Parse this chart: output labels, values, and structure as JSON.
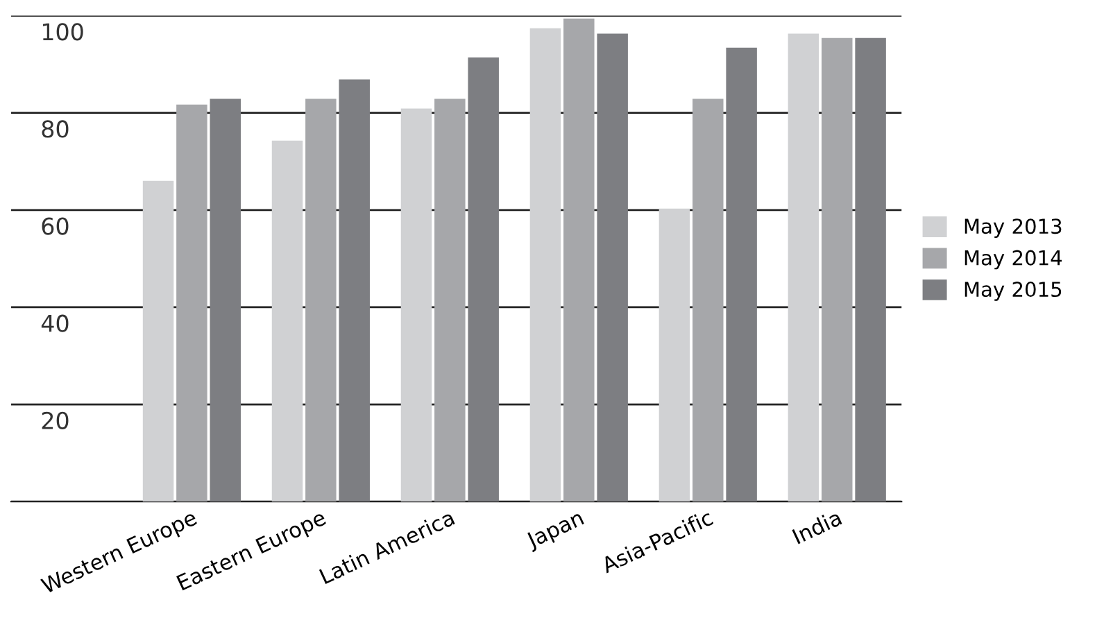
{
  "chart_data": {
    "type": "bar",
    "categories": [
      "Western Europe",
      "Eastern Europe",
      "Latin America",
      "Japan",
      "Asia-Pacific",
      "India"
    ],
    "series": [
      {
        "name": "May 2013",
        "color": "#d0d1d3",
        "values": [
          66,
          74.3,
          80.9,
          97.4,
          60.3,
          96.3
        ]
      },
      {
        "name": "May 2014",
        "color": "#a6a7aa",
        "values": [
          81.7,
          82.9,
          82.9,
          99.4,
          82.9,
          95.4
        ]
      },
      {
        "name": "May 2015",
        "color": "#7d7e82",
        "values": [
          82.9,
          86.9,
          91.4,
          96.3,
          93.4,
          95.4
        ]
      }
    ],
    "ylim": [
      0,
      100
    ],
    "yticks": [
      {
        "value": 0,
        "label": null
      },
      20,
      40,
      60,
      80,
      100
    ],
    "grid": "y",
    "legend": "right"
  }
}
